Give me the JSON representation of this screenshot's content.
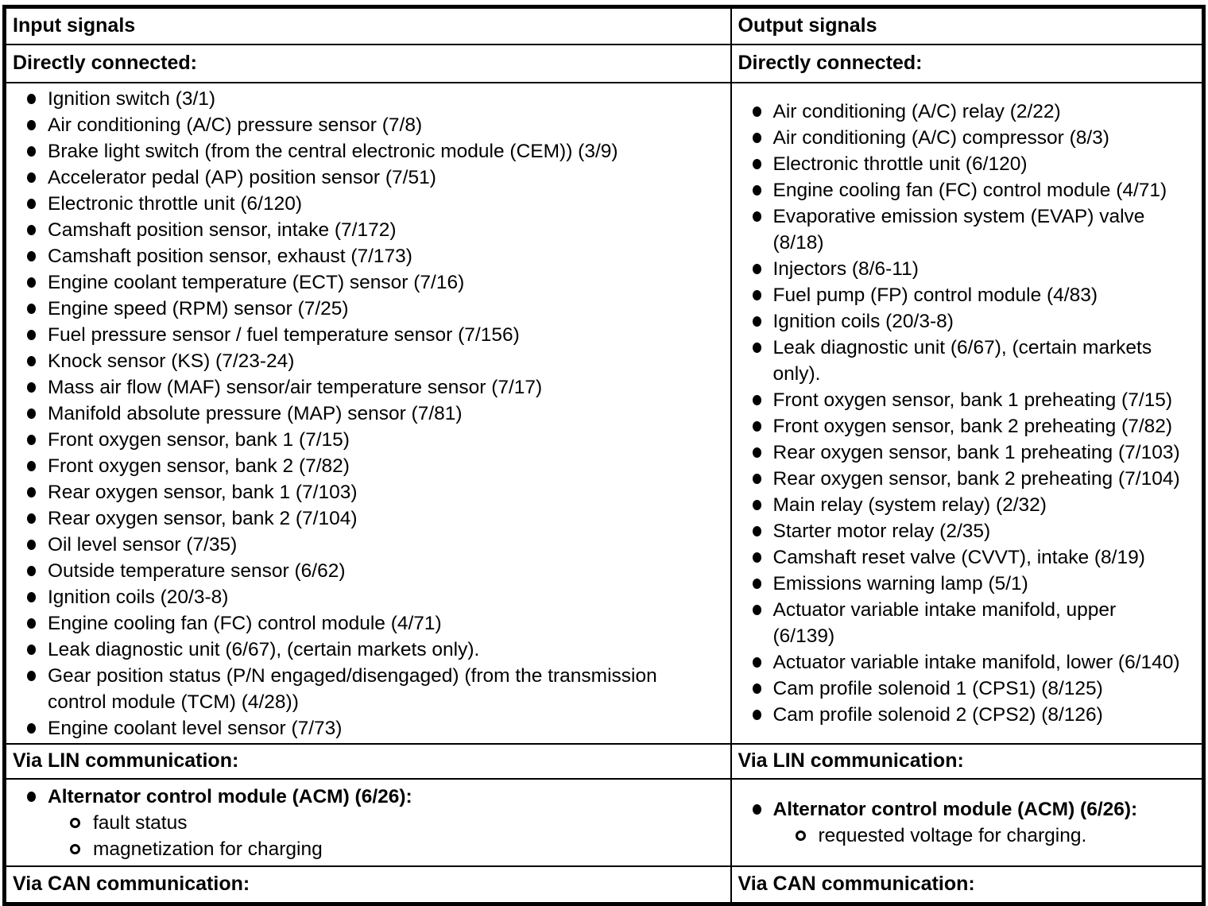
{
  "document": {
    "colors": {
      "text": "#000000",
      "background": "#ffffff",
      "border": "#000000"
    },
    "columns": [
      {
        "header": "Input signals",
        "sections": [
          {
            "title": "Directly connected:",
            "items": [
              "Ignition switch (3/1)",
              "Air conditioning (A/C) pressure sensor (7/8)",
              "Brake light switch (from the central electronic module (CEM)) (3/9)",
              "Accelerator pedal (AP) position sensor (7/51)",
              "Electronic throttle unit (6/120)",
              "Camshaft position sensor, intake (7/172)",
              "Camshaft position sensor, exhaust (7/173)",
              "Engine coolant temperature (ECT) sensor (7/16)",
              "Engine speed (RPM) sensor (7/25)",
              "Fuel pressure sensor / fuel temperature sensor (7/156)",
              "Knock sensor (KS) (7/23-24)",
              "Mass air flow (MAF) sensor/air temperature sensor (7/17)",
              "Manifold absolute pressure (MAP) sensor (7/81)",
              "Front oxygen sensor, bank 1 (7/15)",
              "Front oxygen sensor, bank 2 (7/82)",
              "Rear oxygen sensor, bank 1 (7/103)",
              "Rear oxygen sensor, bank 2 (7/104)",
              "Oil level sensor (7/35)",
              "Outside temperature sensor (6/62)",
              "Ignition coils (20/3-8)",
              "Engine cooling fan (FC) control module (4/71)",
              "Leak diagnostic unit (6/67), (certain markets only).",
              "Gear position status (P/N engaged/disengaged) (from the transmission\ncontrol module (TCM) (4/28))",
              "Engine coolant level sensor (7/73)"
            ]
          },
          {
            "title": "Via LIN communication:",
            "items": [
              {
                "text": "Alternator control module (ACM) (6/26):",
                "bold": true,
                "subitems": [
                  "fault status",
                  "magnetization for charging"
                ]
              }
            ]
          },
          {
            "title": "Via CAN communication:",
            "items": []
          }
        ]
      },
      {
        "header": "Output signals",
        "sections": [
          {
            "title": "Directly connected:",
            "items": [
              "Air conditioning (A/C) relay (2/22)",
              "Air conditioning (A/C) compressor (8/3)",
              "Electronic throttle unit (6/120)",
              "Engine cooling fan (FC) control module (4/71)",
              "Evaporative emission system (EVAP) valve\n(8/18)",
              "Injectors (8/6-11)",
              "Fuel pump (FP) control module (4/83)",
              "Ignition coils (20/3-8)",
              "Leak diagnostic unit (6/67), (certain markets\nonly).",
              "Front oxygen sensor, bank 1 preheating (7/15)",
              "Front oxygen sensor, bank 2 preheating (7/82)",
              "Rear oxygen sensor, bank 1 preheating (7/103)",
              "Rear oxygen sensor, bank 2 preheating (7/104)",
              "Main relay (system relay) (2/32)",
              "Starter motor relay (2/35)",
              "Camshaft reset valve (CVVT), intake (8/19)",
              "Emissions warning lamp (5/1)",
              "Actuator variable intake manifold, upper\n(6/139)",
              "Actuator variable intake manifold, lower (6/140)",
              "Cam profile solenoid 1 (CPS1) (8/125)",
              "Cam profile solenoid 2 (CPS2) (8/126)"
            ]
          },
          {
            "title": "Via LIN communication:",
            "items": [
              {
                "text": "Alternator control module (ACM) (6/26):",
                "bold": true,
                "subitems": [
                  "requested voltage for charging."
                ]
              }
            ]
          },
          {
            "title": "Via CAN communication:",
            "items": []
          }
        ]
      }
    ]
  }
}
